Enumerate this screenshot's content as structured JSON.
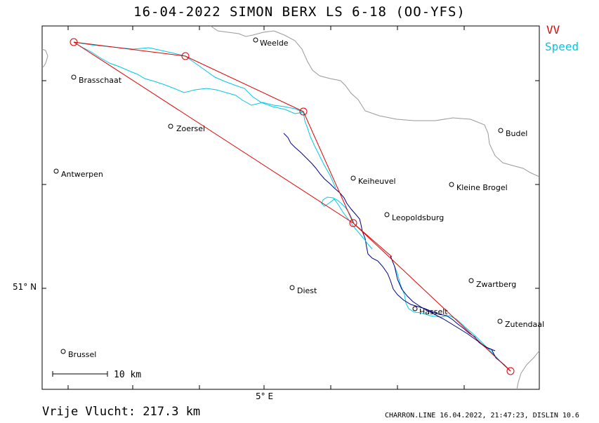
{
  "title": "16-04-2022   SIMON BERX   LS 6-18 (OO-YFS)",
  "legend": {
    "vv": {
      "label": "VV",
      "color": "#e00000"
    },
    "speed": {
      "label": "Speed",
      "color": "#00c8e6"
    }
  },
  "axes": {
    "latitude_label": "51° N",
    "longitude_label": "5° E"
  },
  "scale_bar": {
    "label": "10  km"
  },
  "footer": {
    "distance": "Vrije Vlucht:  217.3 km",
    "credit": "CHARRON.LINE 16.04.2022, 21:47:23, DISLIN 10.6"
  },
  "towns": [
    {
      "name": "Weelde"
    },
    {
      "name": "Brasschaat"
    },
    {
      "name": "Zoersel"
    },
    {
      "name": "Antwerpen"
    },
    {
      "name": "Keiheuvel"
    },
    {
      "name": "Kleine Brogel"
    },
    {
      "name": "Budel"
    },
    {
      "name": "Leopoldsburg"
    },
    {
      "name": "Zwartberg"
    },
    {
      "name": "Diest"
    },
    {
      "name": "Hasselt"
    },
    {
      "name": "Zutendaal"
    },
    {
      "name": "Brussel"
    }
  ],
  "colors": {
    "frame": "#000000",
    "border": "#999999",
    "track_low": "#000080",
    "track_high": "#00c8e6",
    "turnpoint": "#e00000"
  }
}
